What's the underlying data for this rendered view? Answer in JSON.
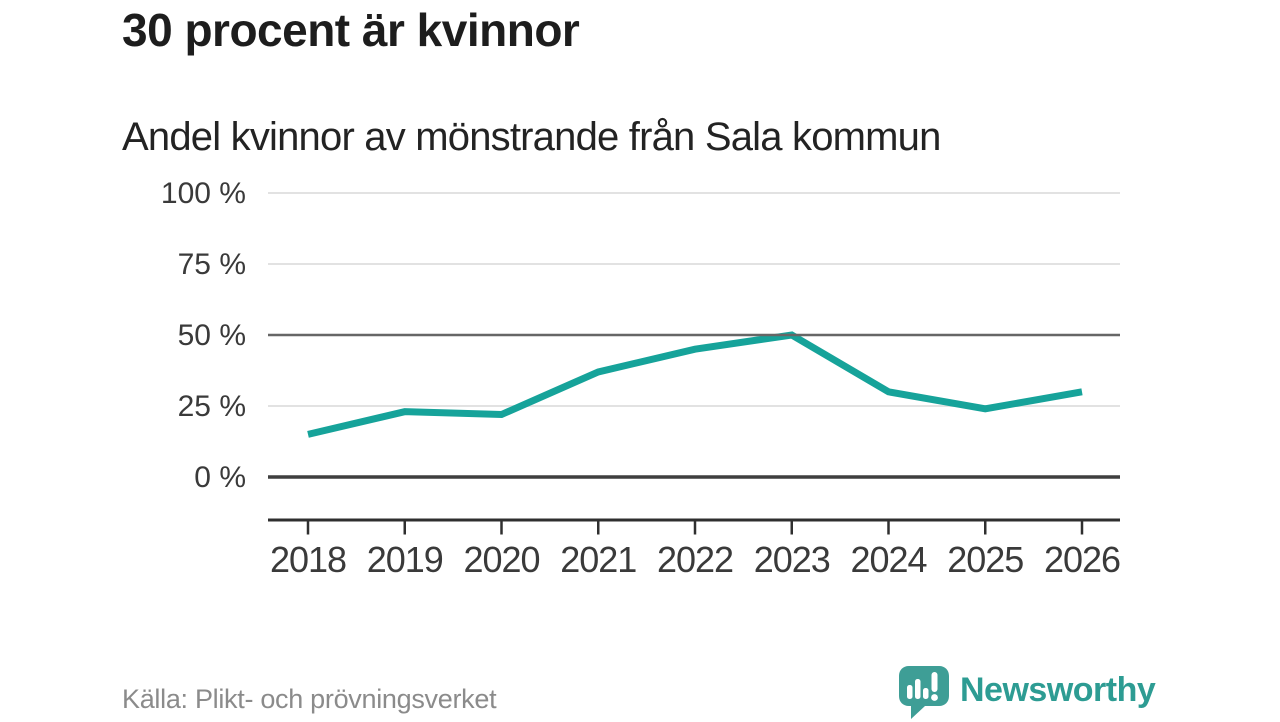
{
  "header": {
    "title": "30 procent är kvinnor",
    "subtitle": "Andel kvinnor av mönstrande från Sala kommun"
  },
  "footer": {
    "source": "Källa: Plikt- och prövningsverket",
    "logo_text": "Newsworthy"
  },
  "icons": {
    "logo_icon": "speech-bubble-bar-chart-exclamation-icon"
  },
  "colors": {
    "line": "#16a39a",
    "grid_light": "#e2e2e2",
    "grid_benchmark": "#666666",
    "grid_zero": "#3f3f3f",
    "axis": "#2f2f2f",
    "tick_label": "#3a3a3a",
    "title_text": "#1d1d1d",
    "source_text": "#8b8b8b",
    "logo_teal_icon": "#3e9e96",
    "logo_teal_text": "#2d9c93"
  },
  "chart_data": {
    "type": "line",
    "title": "30 procent är kvinnor",
    "subtitle": "Andel kvinnor av mönstrande från Sala kommun",
    "x": [
      2018,
      2019,
      2020,
      2021,
      2022,
      2023,
      2024,
      2025,
      2026
    ],
    "series": [
      {
        "name": "Andel kvinnor",
        "values": [
          15,
          23,
          22,
          37,
          45,
          50,
          30,
          24,
          30
        ]
      }
    ],
    "unit": "%",
    "ylim": [
      0,
      100
    ],
    "yticks": [
      0,
      25,
      50,
      75,
      100
    ],
    "ytick_suffix": " %",
    "grid": "horizontal",
    "benchmark_gridline": 50,
    "legend": "none",
    "source": "Källa: Plikt- och prövningsverket"
  }
}
